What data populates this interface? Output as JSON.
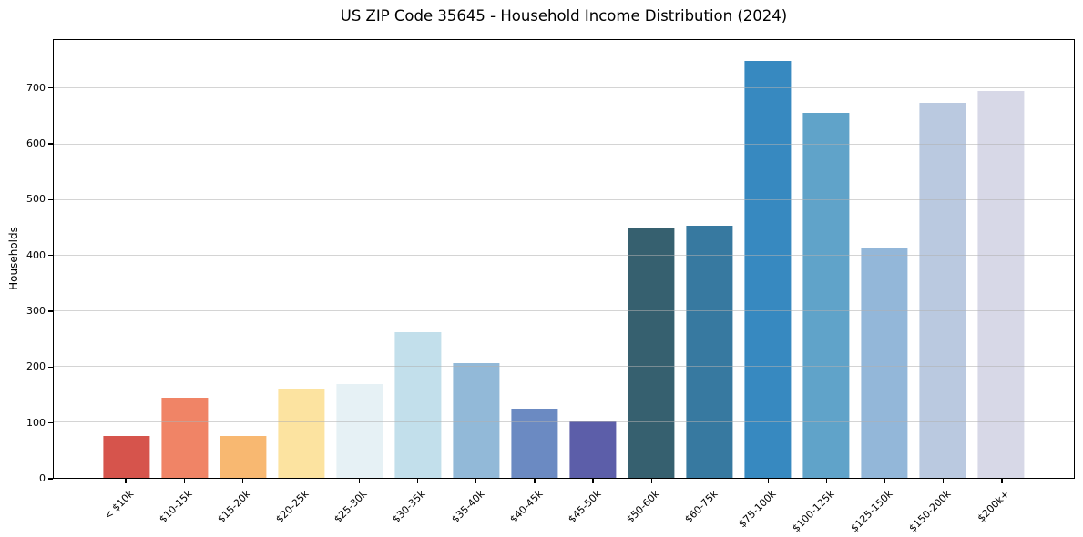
{
  "title": "US ZIP Code 35645 - Household Income Distribution (2024)",
  "chart_data": {
    "type": "bar",
    "title": "US ZIP Code 35645 - Household Income Distribution (2024)",
    "xlabel": "",
    "ylabel": "Households",
    "categories": [
      "< $10k",
      "$10-15k",
      "$15-20k",
      "$20-25k",
      "$25-30k",
      "$30-35k",
      "$35-40k",
      "$40-45k",
      "$45-50k",
      "$50-60k",
      "$60-75k",
      "$75-100k",
      "$100-125k",
      "$125-150k",
      "$150-200k",
      "$200k+"
    ],
    "values": [
      75,
      144,
      75,
      160,
      169,
      262,
      206,
      124,
      101,
      450,
      453,
      750,
      656,
      413,
      675,
      696
    ],
    "bar_colors": [
      "#d6544c",
      "#f08466",
      "#f8b871",
      "#fce3a0",
      "#e6f1f5",
      "#c2dfeb",
      "#92b9d8",
      "#6b8ac2",
      "#5c5ea9",
      "#36606f",
      "#3779a0",
      "#3789c0",
      "#60a3c9",
      "#93b7d9",
      "#bac9e0",
      "#d7d8e7"
    ],
    "yticks": [
      0,
      100,
      200,
      300,
      400,
      500,
      600,
      700
    ],
    "ylim": [
      0,
      787.5
    ],
    "grid": "horizontal-light-gray",
    "legend": "none",
    "background": "#ffffff",
    "spine_color": "#000000"
  }
}
